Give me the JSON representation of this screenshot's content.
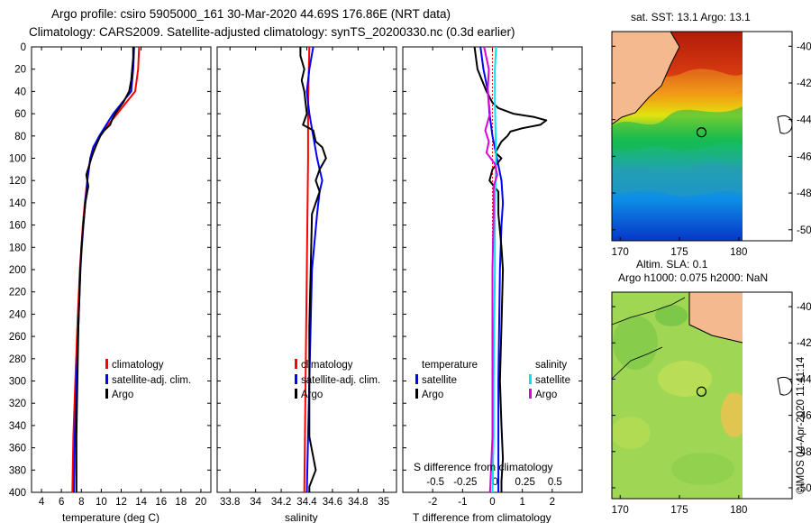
{
  "title": {
    "line1": "Argo profile: csiro 5905000_161 30-Mar-2020 44.69S 176.86E (NRT data)",
    "line2": "Climatology: CARS2009. Satellite-adjusted climatology: synTS_20200330.nc (0.3d earlier)"
  },
  "colors": {
    "climatology": "#ff0000",
    "satellite": "#0000ff",
    "argo": "#000000",
    "sat_salinity": "#00e5ee",
    "argo_salinity_diff": "#dd00dd",
    "land": "#f5b98f"
  },
  "legend": {
    "climatology": "climatology",
    "satellite_adj": "satellite-adj. clim.",
    "argo": "Argo",
    "temperature_head": "temperature",
    "salinity_head": "salinity",
    "satellite": "satellite",
    "argo_short": "Argo"
  },
  "depth_ticks": [
    "0",
    "20",
    "40",
    "60",
    "80",
    "100",
    "120",
    "140",
    "160",
    "180",
    "200",
    "220",
    "240",
    "260",
    "280",
    "300",
    "320",
    "340",
    "360",
    "380",
    "400"
  ],
  "chart_data": [
    {
      "type": "line",
      "name": "temperature",
      "xlabel": "temperature (deg C)",
      "ylabel": "depth",
      "xlim": [
        3,
        21
      ],
      "ylim": [
        400,
        0
      ],
      "xticks": [
        "4",
        "6",
        "8",
        "10",
        "12",
        "14",
        "16",
        "18",
        "20"
      ],
      "yticks": [
        0,
        20,
        40,
        60,
        80,
        100,
        120,
        140,
        160,
        180,
        200,
        220,
        240,
        260,
        280,
        300,
        320,
        340,
        360,
        380,
        400
      ],
      "series": [
        {
          "name": "climatology",
          "color": "#ff0000",
          "depth": [
            0,
            20,
            40,
            50,
            60,
            70,
            80,
            90,
            100,
            120,
            140,
            160,
            180,
            200,
            250,
            300,
            350,
            400
          ],
          "values": [
            13.8,
            13.7,
            13.4,
            12.5,
            11.6,
            10.7,
            9.9,
            9.2,
            8.9,
            8.6,
            8.35,
            8.15,
            8.0,
            7.85,
            7.6,
            7.4,
            7.2,
            7.1
          ]
        },
        {
          "name": "satellite-adj. clim.",
          "color": "#0000ff",
          "depth": [
            0,
            20,
            40,
            50,
            60,
            70,
            80,
            90,
            100,
            120,
            140,
            160,
            180,
            200,
            250,
            300,
            350,
            400
          ],
          "values": [
            13.3,
            13.2,
            13.0,
            12.1,
            11.2,
            10.5,
            9.8,
            9.2,
            8.9,
            8.6,
            8.4,
            8.2,
            8.05,
            7.9,
            7.7,
            7.5,
            7.35,
            7.25
          ]
        },
        {
          "name": "Argo",
          "color": "#000000",
          "depth": [
            0,
            10,
            30,
            40,
            50,
            55,
            60,
            65,
            70,
            75,
            80,
            88,
            95,
            100,
            112,
            115,
            125,
            140,
            160,
            180,
            200,
            250,
            300,
            350,
            400
          ],
          "values": [
            13.2,
            13.2,
            13.0,
            12.8,
            12.2,
            11.8,
            11.4,
            11.1,
            10.9,
            10.3,
            9.9,
            9.5,
            9.2,
            9.0,
            8.6,
            8.5,
            8.7,
            8.4,
            8.2,
            8.0,
            7.9,
            7.7,
            7.6,
            7.5,
            7.5
          ]
        }
      ]
    },
    {
      "type": "line",
      "name": "salinity",
      "xlabel": "salinity",
      "ylabel": "depth",
      "xlim": [
        33.7,
        35.1
      ],
      "ylim": [
        400,
        0
      ],
      "xticks": [
        "33.8",
        "34",
        "34.2",
        "34.4",
        "34.6",
        "34.8",
        "35"
      ],
      "yticks": [
        0,
        20,
        40,
        60,
        80,
        100,
        120,
        140,
        160,
        180,
        200,
        220,
        240,
        260,
        280,
        300,
        320,
        340,
        360,
        380,
        400
      ],
      "series": [
        {
          "name": "climatology",
          "color": "#ff0000",
          "depth": [
            0,
            50,
            100,
            200,
            300,
            400
          ],
          "values": [
            34.42,
            34.41,
            34.41,
            34.4,
            34.39,
            34.38
          ]
        },
        {
          "name": "satellite-adj. clim.",
          "color": "#0000ff",
          "depth": [
            0,
            20,
            40,
            60,
            80,
            100,
            110,
            120,
            130,
            150,
            200,
            300,
            400
          ],
          "values": [
            34.45,
            34.42,
            34.4,
            34.42,
            34.45,
            34.48,
            34.5,
            34.52,
            34.5,
            34.48,
            34.44,
            34.42,
            34.4
          ]
        },
        {
          "name": "Argo",
          "color": "#000000",
          "depth": [
            0,
            8,
            20,
            30,
            40,
            60,
            70,
            75,
            85,
            90,
            100,
            110,
            120,
            130,
            150,
            200,
            250,
            300,
            350,
            380,
            395,
            400
          ],
          "values": [
            34.35,
            34.35,
            34.38,
            34.36,
            34.38,
            34.4,
            34.37,
            34.45,
            34.47,
            34.52,
            34.55,
            34.5,
            34.47,
            34.5,
            34.44,
            34.43,
            34.42,
            34.42,
            34.42,
            34.47,
            34.42,
            34.42
          ]
        }
      ]
    },
    {
      "type": "line",
      "name": "difference from climatology",
      "xlabel": "T difference from climatology",
      "xlabel_top": "S difference from climatology",
      "ylabel": "depth",
      "xlim": [
        -3,
        3
      ],
      "ylim": [
        400,
        0
      ],
      "xticks": [
        "-2",
        "-1",
        "0",
        "1",
        "2"
      ],
      "xticks_s": [
        "-0.5",
        "-0.25",
        "0",
        "0.25",
        "0.5"
      ],
      "series": [
        {
          "name": "temperature satellite",
          "color": "#0000ff",
          "depth": [
            0,
            20,
            40,
            60,
            80,
            100,
            120,
            140,
            160,
            200,
            300,
            400
          ],
          "values": [
            -0.4,
            -0.3,
            -0.15,
            -0.1,
            0.0,
            0.15,
            0.3,
            0.35,
            0.3,
            0.25,
            0.2,
            0.2
          ]
        },
        {
          "name": "temperature Argo",
          "color": "#000000",
          "depth": [
            0,
            20,
            40,
            50,
            55,
            60,
            63,
            66,
            70,
            73,
            76,
            80,
            85,
            90,
            95,
            100,
            110,
            120,
            130,
            150,
            180,
            200,
            250,
            300,
            340,
            370,
            390,
            400
          ],
          "values": [
            -0.6,
            -0.5,
            -0.2,
            0.0,
            0.2,
            0.7,
            1.4,
            1.8,
            1.6,
            1.0,
            0.6,
            0.5,
            0.3,
            0.2,
            0.1,
            0.3,
            0.0,
            -0.1,
            0.2,
            0.2,
            0.3,
            0.35,
            0.3,
            0.25,
            0.3,
            0.35,
            0.3,
            0.3
          ]
        },
        {
          "name": "salinity satellite",
          "color": "#00e5ee",
          "depth": [
            0,
            20,
            50,
            100,
            150,
            200,
            300,
            350,
            400
          ],
          "values": [
            0.03,
            0.02,
            0.02,
            0.03,
            0.02,
            0.02,
            0.01,
            0.01,
            0.0
          ]
        },
        {
          "name": "salinity Argo",
          "color": "#dd00dd",
          "depth": [
            0,
            20,
            40,
            60,
            75,
            85,
            95,
            105,
            115,
            125,
            150,
            200,
            300,
            350,
            400
          ],
          "values": [
            -0.07,
            -0.03,
            -0.04,
            -0.02,
            -0.06,
            -0.03,
            -0.05,
            0.02,
            0.04,
            0.01,
            0.01,
            0.0,
            0.0,
            0.0,
            -0.02
          ]
        }
      ]
    }
  ],
  "maps": {
    "sst": {
      "title": "sat. SST: 13.1 Argo: 13.1",
      "lat_ticks": [
        "-40",
        "-42",
        "-44",
        "-46",
        "-48",
        "-50"
      ],
      "lon_ticks": [
        "170",
        "175",
        "180"
      ]
    },
    "sla": {
      "title_line1": "Altim. SLA: 0.1",
      "title_line2": "Argo h1000: 0.075 h2000: NaN",
      "lat_ticks": [
        "-40",
        "-42",
        "-44",
        "-46",
        "-48",
        "-50"
      ],
      "lon_ticks": [
        "170",
        "175",
        "180"
      ]
    },
    "argo_position": {
      "lon": 176.86,
      "lat": -44.69
    }
  },
  "credit": "©IMOS 04-Apr-2020 11:41:14"
}
